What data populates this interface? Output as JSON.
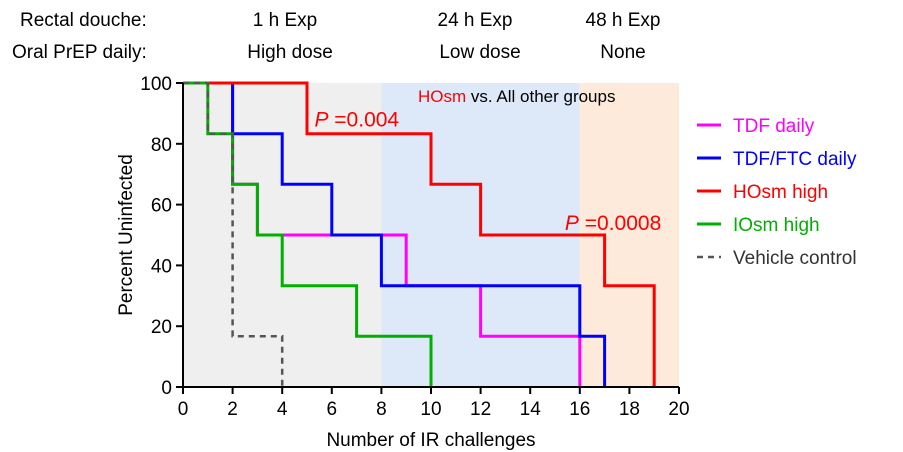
{
  "header": {
    "row1_label": "Rectal douche:",
    "row2_label": "Oral PrEP daily:",
    "columns": [
      {
        "row1": "1 h Exp",
        "row2": "High dose"
      },
      {
        "row1": "24 h Exp",
        "row2": "Low dose"
      },
      {
        "row1": "48 h Exp",
        "row2": "None"
      }
    ]
  },
  "chart_data": {
    "type": "line",
    "step": true,
    "xlabel": "Number of IR challenges",
    "ylabel": "Percent Uninfected",
    "xlim": [
      0,
      20
    ],
    "ylim": [
      0,
      100
    ],
    "xticks": [
      0,
      2,
      4,
      6,
      8,
      10,
      12,
      14,
      16,
      18,
      20
    ],
    "yticks": [
      0,
      20,
      40,
      60,
      80,
      100
    ],
    "grid": false,
    "legend_position": "right",
    "shaded_regions": [
      {
        "x": [
          0,
          8
        ],
        "color": "#efefef"
      },
      {
        "x": [
          8,
          16
        ],
        "color": "#dde9f8"
      },
      {
        "x": [
          16,
          20
        ],
        "color": "#fdeadb"
      }
    ],
    "series": [
      {
        "name": "TDF daily",
        "color": "#ff00ff",
        "dash": false,
        "points": [
          [
            0,
            100
          ],
          [
            2,
            100
          ],
          [
            2,
            66.7
          ],
          [
            3,
            66.7
          ],
          [
            3,
            50
          ],
          [
            9,
            50
          ],
          [
            9,
            33.3
          ],
          [
            12,
            33.3
          ],
          [
            12,
            16.7
          ],
          [
            16,
            16.7
          ],
          [
            16,
            0
          ]
        ]
      },
      {
        "name": "TDF/FTC daily",
        "color": "#0000ff",
        "dash": false,
        "points": [
          [
            0,
            100
          ],
          [
            2,
            100
          ],
          [
            2,
            83.3
          ],
          [
            4,
            83.3
          ],
          [
            4,
            66.7
          ],
          [
            6,
            66.7
          ],
          [
            6,
            50
          ],
          [
            8,
            50
          ],
          [
            8,
            33.3
          ],
          [
            16,
            33.3
          ],
          [
            16,
            16.7
          ],
          [
            17,
            16.7
          ],
          [
            17,
            0
          ]
        ]
      },
      {
        "name": "HOsm high",
        "color": "#ff0000",
        "dash": false,
        "points": [
          [
            0,
            100
          ],
          [
            5,
            100
          ],
          [
            5,
            83.3
          ],
          [
            10,
            83.3
          ],
          [
            10,
            66.7
          ],
          [
            12,
            66.7
          ],
          [
            12,
            50
          ],
          [
            17,
            50
          ],
          [
            17,
            33.3
          ],
          [
            19,
            33.3
          ],
          [
            19,
            0
          ]
        ]
      },
      {
        "name": "IOsm high",
        "color": "#00b000",
        "dash": false,
        "points": [
          [
            0,
            100
          ],
          [
            1,
            100
          ],
          [
            1,
            83.3
          ],
          [
            2,
            83.3
          ],
          [
            2,
            66.7
          ],
          [
            3,
            66.7
          ],
          [
            3,
            50
          ],
          [
            4,
            50
          ],
          [
            4,
            33.3
          ],
          [
            7,
            33.3
          ],
          [
            7,
            16.7
          ],
          [
            10,
            16.7
          ],
          [
            10,
            0
          ]
        ]
      },
      {
        "name": "Vehicle control",
        "color": "#555555",
        "dash": true,
        "points": [
          [
            0,
            100
          ],
          [
            1,
            100
          ],
          [
            1,
            83.3
          ],
          [
            2,
            83.3
          ],
          [
            2,
            16.7
          ],
          [
            4,
            16.7
          ],
          [
            4,
            0
          ]
        ]
      }
    ],
    "annotations": {
      "comparison_highlight": "HOsm",
      "comparison_highlight_color": "#ff0000",
      "comparison_rest": " vs. All other groups",
      "p_values": [
        {
          "prefix": "P",
          "text": " =0.004",
          "color": "#ff0000",
          "x": 5.3,
          "y": 88
        },
        {
          "prefix": "P",
          "text": " =0.0008",
          "color": "#ff0000",
          "x": 15.4,
          "y": 54
        }
      ]
    }
  }
}
